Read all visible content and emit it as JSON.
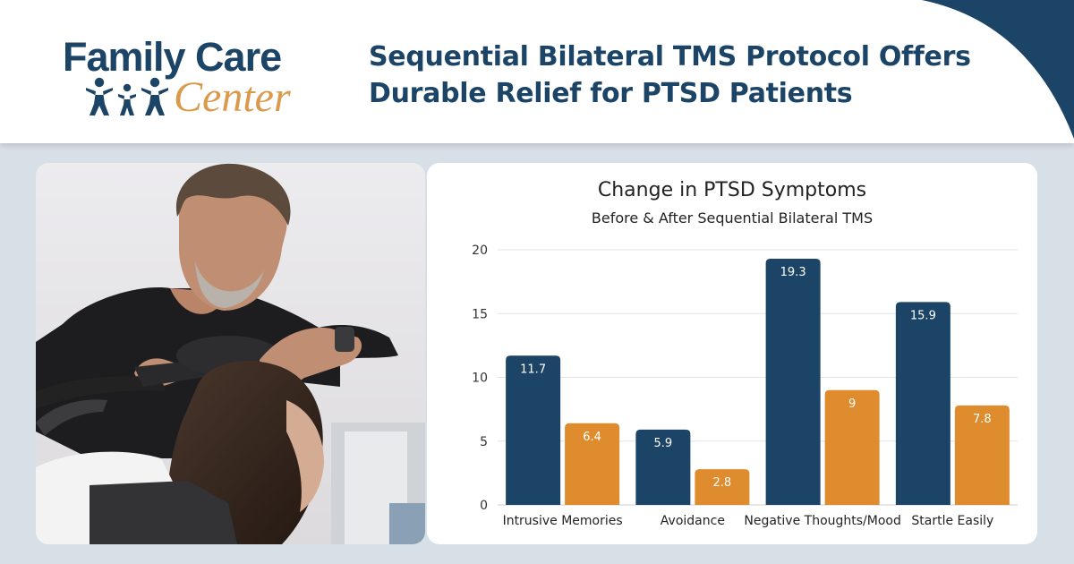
{
  "brand": {
    "line1": "Family Care",
    "line2": "Center",
    "navy": "#1b4466",
    "gold": "#d99a4c"
  },
  "headline": {
    "line1": "Sequential Bilateral TMS Protocol Offers",
    "line2": "Durable Relief for PTSD Patients"
  },
  "photo": {
    "icon": "clinician-applying-tms-coil-photo"
  },
  "chart_data": {
    "type": "bar",
    "title": "Change in PTSD Symptoms",
    "subtitle": "Before & After Sequential Bilateral TMS",
    "categories": [
      "Intrusive Memories",
      "Avoidance",
      "Negative Thoughts/Mood",
      "Startle Easily"
    ],
    "series": [
      {
        "values": [
          11.7,
          5.9,
          19.3,
          15.9
        ],
        "color": "#1b4466"
      },
      {
        "values": [
          6.4,
          2.8,
          9,
          7.8
        ],
        "color": "#df8c2e"
      }
    ],
    "ylim": [
      0,
      20
    ],
    "yticks": [
      0,
      5,
      10,
      15,
      20
    ],
    "grid": true,
    "data_labels": true
  }
}
